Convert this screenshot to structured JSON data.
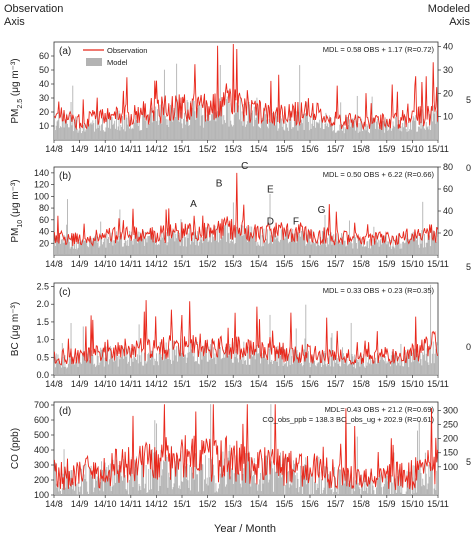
{
  "header": {
    "left_line1": "Observation",
    "left_line2": "Axis",
    "right_line1": "Modeled",
    "right_line2": "Axis"
  },
  "xlabel": "Year / Month",
  "x_ticks": [
    "14/8",
    "14/9",
    "14/10",
    "14/11",
    "14/12",
    "15/1",
    "15/2",
    "15/3",
    "15/4",
    "15/5",
    "15/6",
    "15/7",
    "15/8",
    "15/9",
    "15/10",
    "15/11"
  ],
  "edge_marks": {
    "a": "5",
    "b_top": "0",
    "b_bottom": "5",
    "c": "0",
    "d": "5"
  },
  "colors": {
    "observation": "#e8271b",
    "model": "#b3b3b3"
  },
  "legend": {
    "observation": "Observation",
    "model": "Model"
  },
  "chart_data": [
    {
      "type": "bar+line",
      "panel": "(a)",
      "ylabel": "PM2.5 (μg m⁻³)",
      "ylim_left": [
        0,
        70
      ],
      "yticks_left": [
        10,
        20,
        30,
        40,
        50,
        60
      ],
      "ylim_right": [
        0,
        42
      ],
      "yticks_right": [
        10,
        20,
        30,
        40
      ],
      "equation": "MDL = 0.58 OBS + 1.17 (R=0.72)",
      "obs_monthly_mean": [
        17,
        14,
        16,
        18,
        21,
        24,
        23,
        27,
        19,
        18,
        20,
        14,
        13,
        13,
        16,
        20
      ],
      "obs_peak": {
        "x": "15/3",
        "value": 65
      },
      "annotations": []
    },
    {
      "type": "bar+line",
      "panel": "(b)",
      "ylabel": "PM10 (μg m⁻³)",
      "ylim_left": [
        0,
        150
      ],
      "yticks_left": [
        20,
        40,
        60,
        80,
        100,
        120,
        140
      ],
      "ylim_right": [
        0,
        80
      ],
      "yticks_right": [
        20,
        40,
        60,
        80
      ],
      "equation": "MDL = 0.50 OBS + 6.22 (R=0.66)",
      "obs_monthly_mean": [
        30,
        26,
        32,
        34,
        35,
        40,
        42,
        47,
        38,
        40,
        36,
        30,
        27,
        28,
        32,
        38
      ],
      "obs_peak": {
        "x": "15/3",
        "value": 140
      },
      "annotations": [
        {
          "label": "A",
          "x": "15/1",
          "value": 75
        },
        {
          "label": "B",
          "x": "15/2",
          "value": 110
        },
        {
          "label": "C",
          "x": "15/3",
          "value": 140
        },
        {
          "label": "D",
          "x": "15/4",
          "value": 45
        },
        {
          "label": "E",
          "x": "15/4",
          "value": 100
        },
        {
          "label": "F",
          "x": "15/5",
          "value": 45
        },
        {
          "label": "G",
          "x": "15/6",
          "value": 65
        }
      ]
    },
    {
      "type": "bar+line",
      "panel": "(c)",
      "ylabel": "BC (μg m⁻³)",
      "ylim_left": [
        0,
        2.6
      ],
      "yticks_left": [
        0.0,
        0.5,
        1.0,
        1.5,
        2.0,
        2.5
      ],
      "ylim_right": null,
      "yticks_right": [],
      "equation": "MDL = 0.33 OBS + 0.23 (R=0.35)",
      "obs_monthly_mean": [
        0.5,
        0.55,
        0.65,
        0.7,
        0.75,
        0.85,
        0.8,
        0.8,
        0.7,
        0.65,
        0.6,
        0.5,
        0.5,
        0.55,
        0.6,
        0.9
      ],
      "obs_peak": {
        "x": "15/10",
        "value": 1.65
      },
      "annotations": []
    },
    {
      "type": "bar+line",
      "panel": "(d)",
      "ylabel": "CO (ppb)",
      "ylim_left": [
        100,
        720
      ],
      "yticks_left": [
        100,
        200,
        300,
        400,
        500,
        600,
        700
      ],
      "ylim_right": [
        0,
        330
      ],
      "yticks_right": [
        100,
        150,
        200,
        250,
        300
      ],
      "equation": "MDL= 0.43 OBS + 21.2  (R=0.69)",
      "equation2": "CO_obs_ppb = 138.3 BC_obs_ug + 202.9 (R=0.61)",
      "obs_monthly_mean": [
        230,
        250,
        270,
        300,
        330,
        360,
        330,
        340,
        300,
        280,
        270,
        230,
        200,
        210,
        240,
        300
      ],
      "obs_peak": {
        "x": "15/11",
        "value": 460
      },
      "annotations": []
    }
  ]
}
